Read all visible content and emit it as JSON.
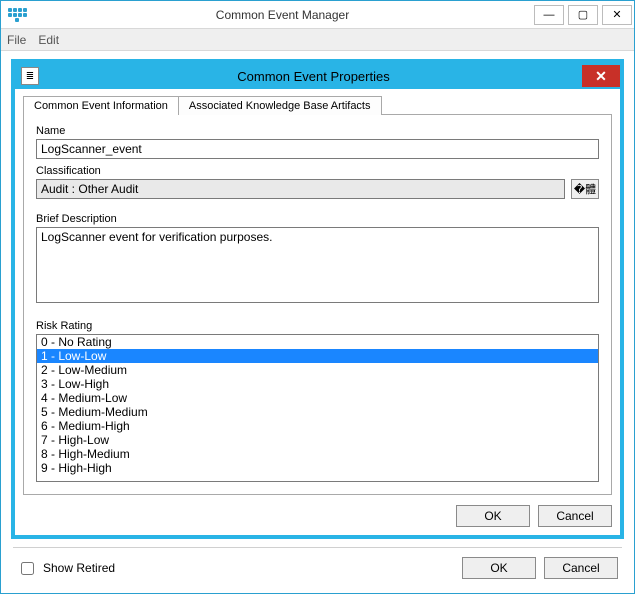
{
  "outer": {
    "title": "Common Event Manager",
    "menu": {
      "file": "File",
      "edit": "Edit"
    },
    "show_retired_label": "Show Retired",
    "show_retired_checked": false,
    "ok_label": "OK",
    "cancel_label": "Cancel"
  },
  "dialog": {
    "title": "Common Event Properties",
    "tabs": {
      "info": "Common Event Information",
      "kb": "Associated Knowledge Base Artifacts",
      "active_index": 0
    },
    "fields": {
      "name_label": "Name",
      "name_value": "LogScanner_event",
      "classification_label": "Classification",
      "classification_value": "Audit : Other Audit",
      "brief_desc_label": "Brief Description",
      "brief_desc_value": "LogScanner event for verification purposes.",
      "risk_label": "Risk Rating"
    },
    "risk_items": [
      "0 - No Rating",
      "1 - Low-Low",
      "2 - Low-Medium",
      "3 - Low-High",
      "4 - Medium-Low",
      "5 - Medium-Medium",
      "6 - Medium-High",
      "7 - High-Low",
      "8 - High-Medium",
      "9 - High-High"
    ],
    "risk_selected_index": 1,
    "ok_label": "OK",
    "cancel_label": "Cancel"
  },
  "colors": {
    "accent": "#29b4e6",
    "selection": "#1a86ff",
    "close_btn": "#c83028"
  }
}
